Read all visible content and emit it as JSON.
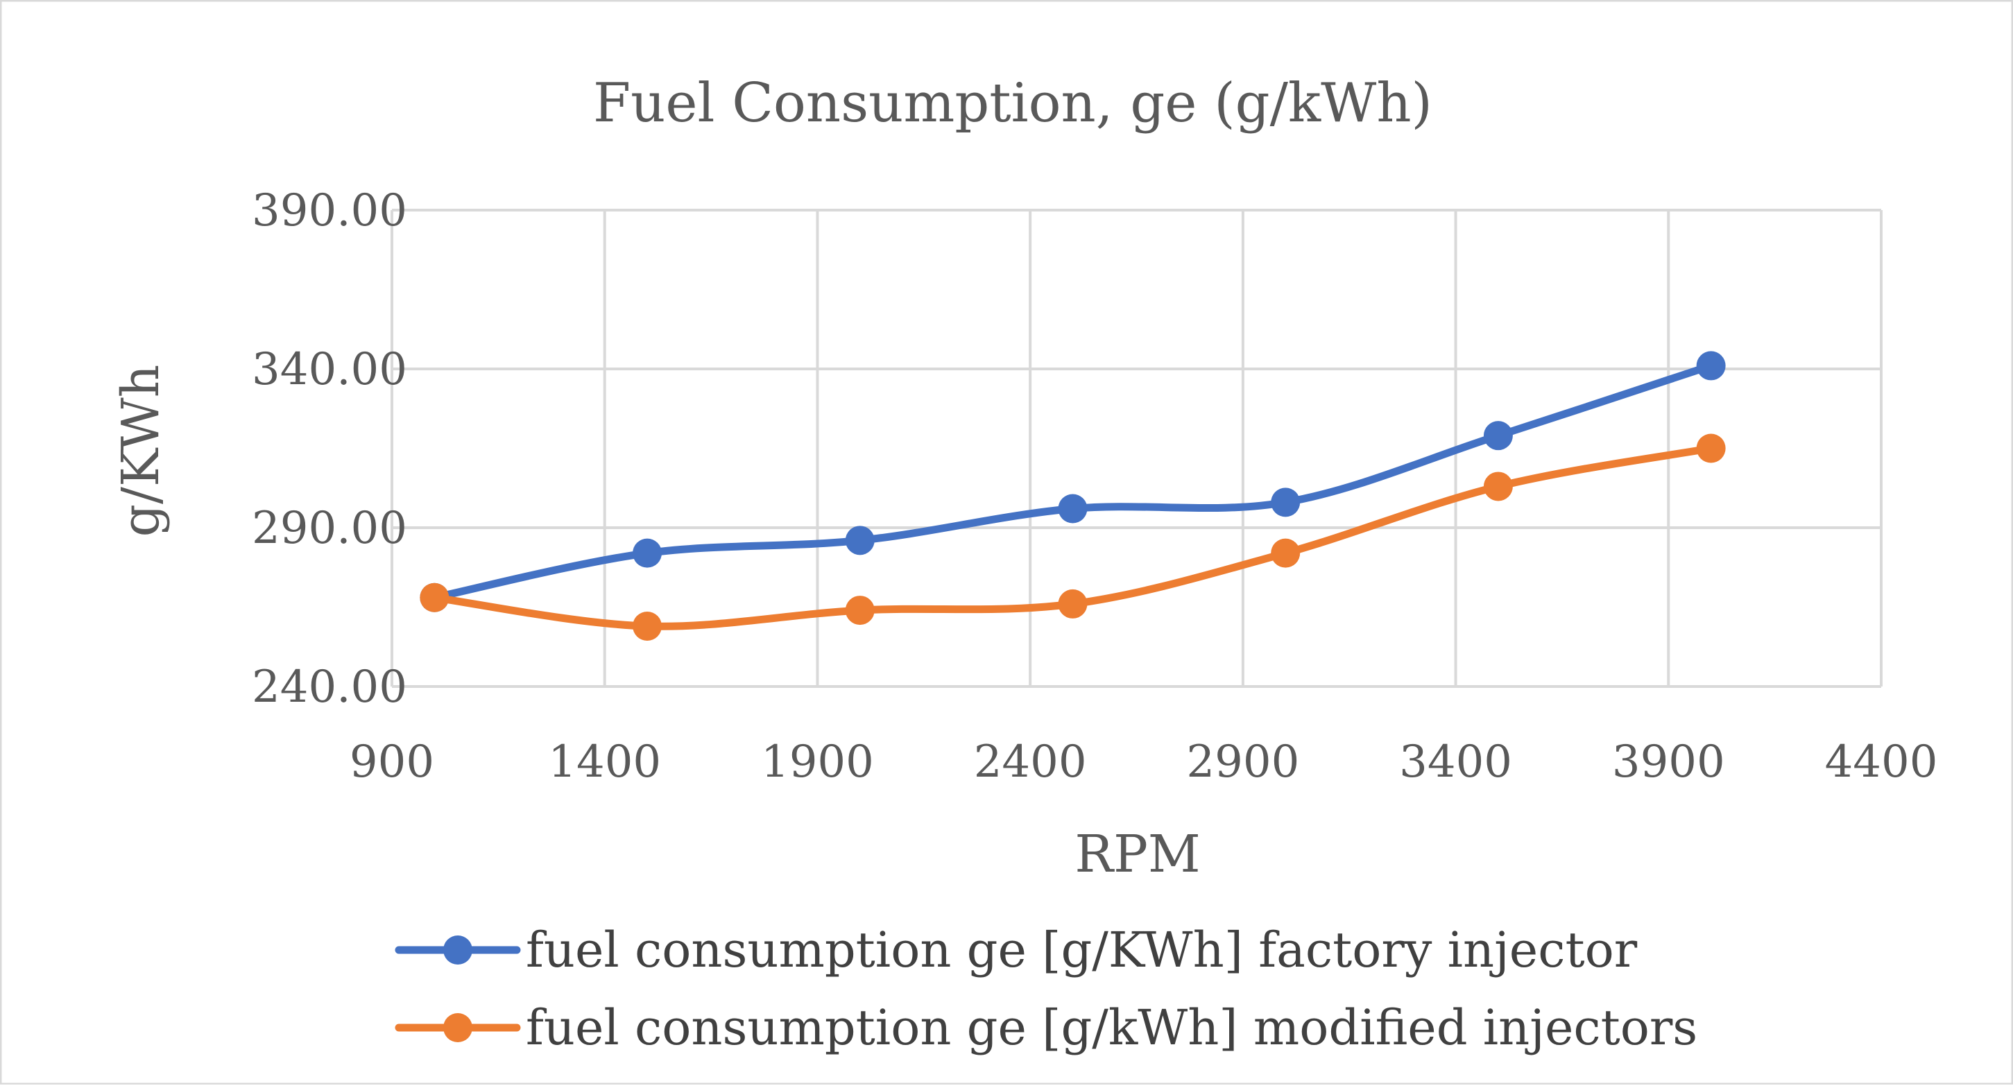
{
  "chart_data": {
    "type": "line",
    "title": "Fuel Consumption, ge (g/kWh)",
    "xlabel": "RPM",
    "ylabel": "g/KWh",
    "xlim": [
      900,
      4400
    ],
    "ylim": [
      240,
      390
    ],
    "xticks": [
      900,
      1400,
      1900,
      2400,
      2900,
      3400,
      3900,
      4400
    ],
    "yticks": [
      240,
      290,
      340,
      390
    ],
    "xtick_labels": [
      "900",
      "1400",
      "1900",
      "2400",
      "2900",
      "3400",
      "3900",
      "4400"
    ],
    "ytick_labels": [
      "240.00",
      "290.00",
      "340.00",
      "390.00"
    ],
    "grid": true,
    "smooth": true,
    "legend_position": "bottom",
    "series": [
      {
        "name": "fuel consumption ge [g/KWh] factory injector",
        "color": "#4472C4",
        "x": [
          1000,
          1500,
          2000,
          2500,
          3000,
          3500,
          4000
        ],
        "y": [
          268,
          282,
          286,
          296,
          298,
          319,
          341
        ]
      },
      {
        "name": "fuel consumption ge [g/kWh] modified injectors",
        "color": "#ED7D31",
        "x": [
          1000,
          1500,
          2000,
          2500,
          3000,
          3500,
          4000
        ],
        "y": [
          268,
          259,
          264,
          266,
          282,
          303,
          315
        ]
      }
    ]
  }
}
